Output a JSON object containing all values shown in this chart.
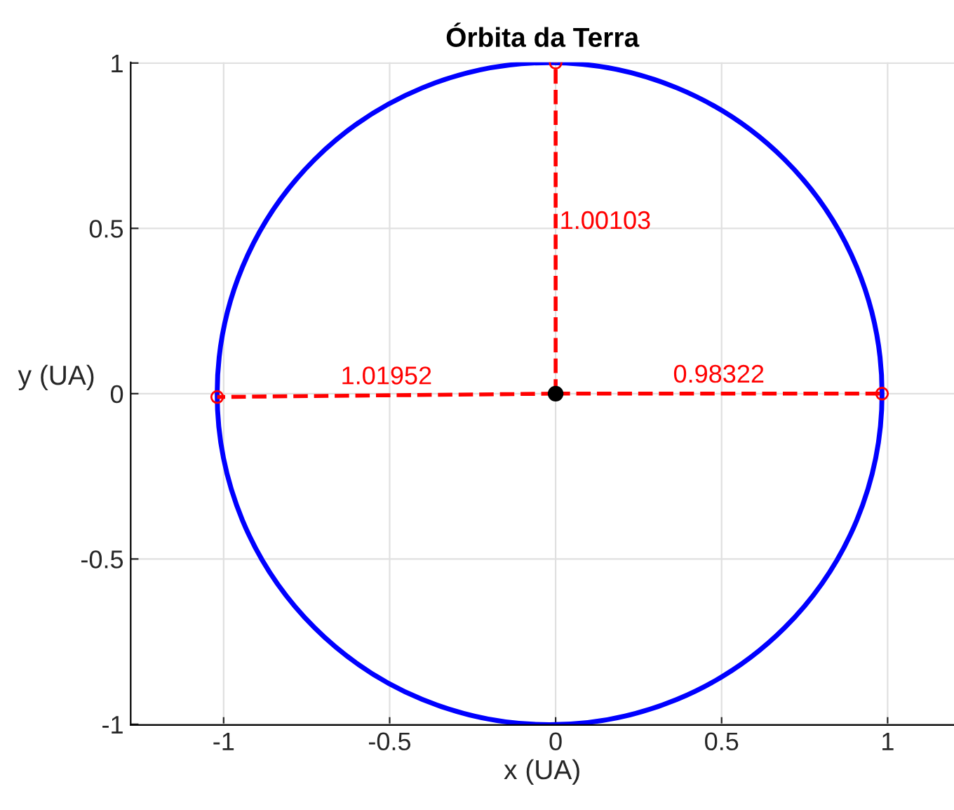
{
  "chart_data": {
    "type": "line",
    "title": "Órbita da Terra",
    "xlabel": "x (UA)",
    "ylabel": "y (UA)",
    "xlim": [
      -1.28,
      1.2
    ],
    "ylim": [
      -1.002,
      1.002
    ],
    "xticks": [
      -1,
      -0.5,
      0,
      0.5,
      1
    ],
    "yticks": [
      -1,
      -0.5,
      0,
      0.5,
      1
    ],
    "grid": true,
    "legend": false,
    "series": [
      {
        "color": "#ff0000",
        "line_style": "dashed",
        "marker": "circle",
        "x": [
          0,
          0
        ],
        "values": [
          0,
          1.00103
        ]
      },
      {
        "color": "#ff0000",
        "line_style": "dashed",
        "marker": "circle",
        "x": [
          0,
          -1.01952
        ],
        "values": [
          0,
          -0.01
        ]
      },
      {
        "color": "#ff0000",
        "line_style": "dashed",
        "marker": "circle",
        "x": [
          0,
          0.98322
        ],
        "values": [
          0,
          0
        ]
      },
      {
        "type": "scatter",
        "color": "#000000",
        "marker": "circle",
        "x": [
          0
        ],
        "values": [
          0
        ]
      }
    ],
    "annotations": [
      "1.00103",
      "1.01952",
      "0.98322"
    ]
  }
}
